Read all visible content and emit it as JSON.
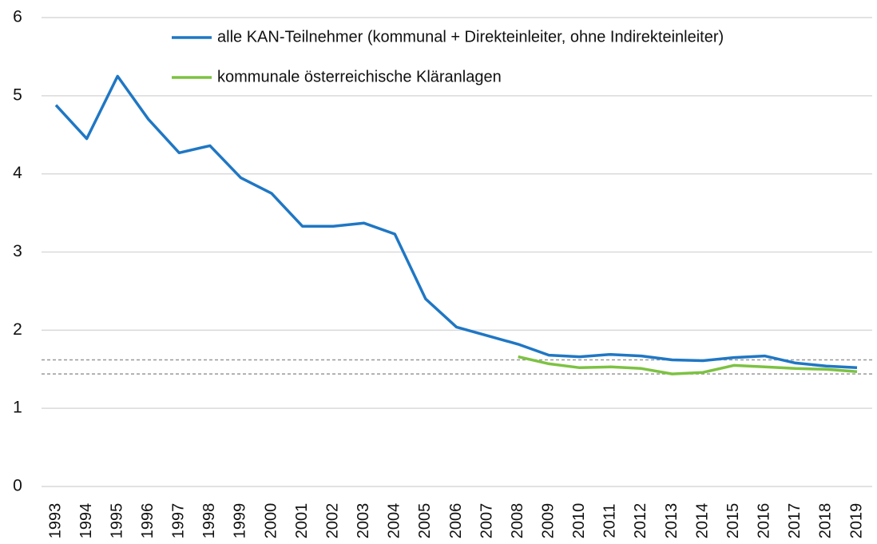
{
  "chart_data": {
    "type": "line",
    "categories": [
      "1993",
      "1994",
      "1995",
      "1996",
      "1997",
      "1998",
      "1999",
      "2000",
      "2001",
      "2002",
      "2003",
      "2004",
      "2005",
      "2006",
      "2007",
      "2008",
      "2009",
      "2010",
      "2011",
      "2012",
      "2013",
      "2014",
      "2015",
      "2016",
      "2017",
      "2018",
      "2019"
    ],
    "series": [
      {
        "name": "alle KAN-Teilnehmer (kommunal + Direkteinleiter, ohne Indirekteinleiter)",
        "color": "#1f77c4",
        "values": [
          4.88,
          4.45,
          5.25,
          4.7,
          4.27,
          4.36,
          3.95,
          3.75,
          3.33,
          3.33,
          3.37,
          3.23,
          2.4,
          2.04,
          1.93,
          1.82,
          1.68,
          1.66,
          1.69,
          1.67,
          1.62,
          1.61,
          1.65,
          1.67,
          1.58,
          1.54,
          1.52
        ]
      },
      {
        "name": "kommunale österreichische Kläranlagen",
        "color": "#7dc242",
        "values": [
          null,
          null,
          null,
          null,
          null,
          null,
          null,
          null,
          null,
          null,
          null,
          null,
          null,
          null,
          null,
          1.66,
          1.57,
          1.52,
          1.53,
          1.51,
          1.44,
          1.46,
          1.55,
          1.53,
          1.51,
          1.5,
          1.47
        ]
      }
    ],
    "reference_lines": [
      1.62,
      1.44
    ],
    "ylim": [
      0,
      6
    ],
    "yticks": [
      0,
      1,
      2,
      3,
      4,
      5,
      6
    ],
    "grid": true,
    "legend": "top-right"
  }
}
